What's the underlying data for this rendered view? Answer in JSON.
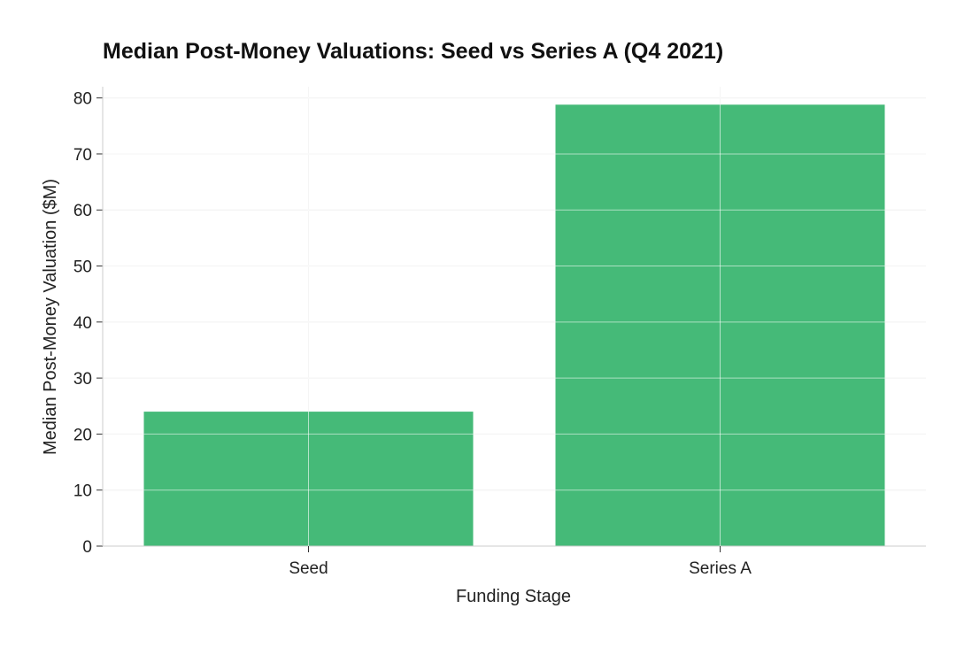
{
  "chart_data": {
    "type": "bar",
    "title": "Median Post-Money Valuations: Seed vs Series A (Q4 2021)",
    "xlabel": "Funding Stage",
    "ylabel": "Median Post-Money Valuation ($M)",
    "categories": [
      "Seed",
      "Series A"
    ],
    "values": [
      24,
      78.8
    ],
    "ylim": [
      0,
      82
    ],
    "yticks": [
      0,
      10,
      20,
      30,
      40,
      50,
      60,
      70,
      80
    ],
    "grid": true,
    "bar_color": "#45ba78",
    "grid_color": "#e6e6e6",
    "axis_color": "#cccccc"
  }
}
